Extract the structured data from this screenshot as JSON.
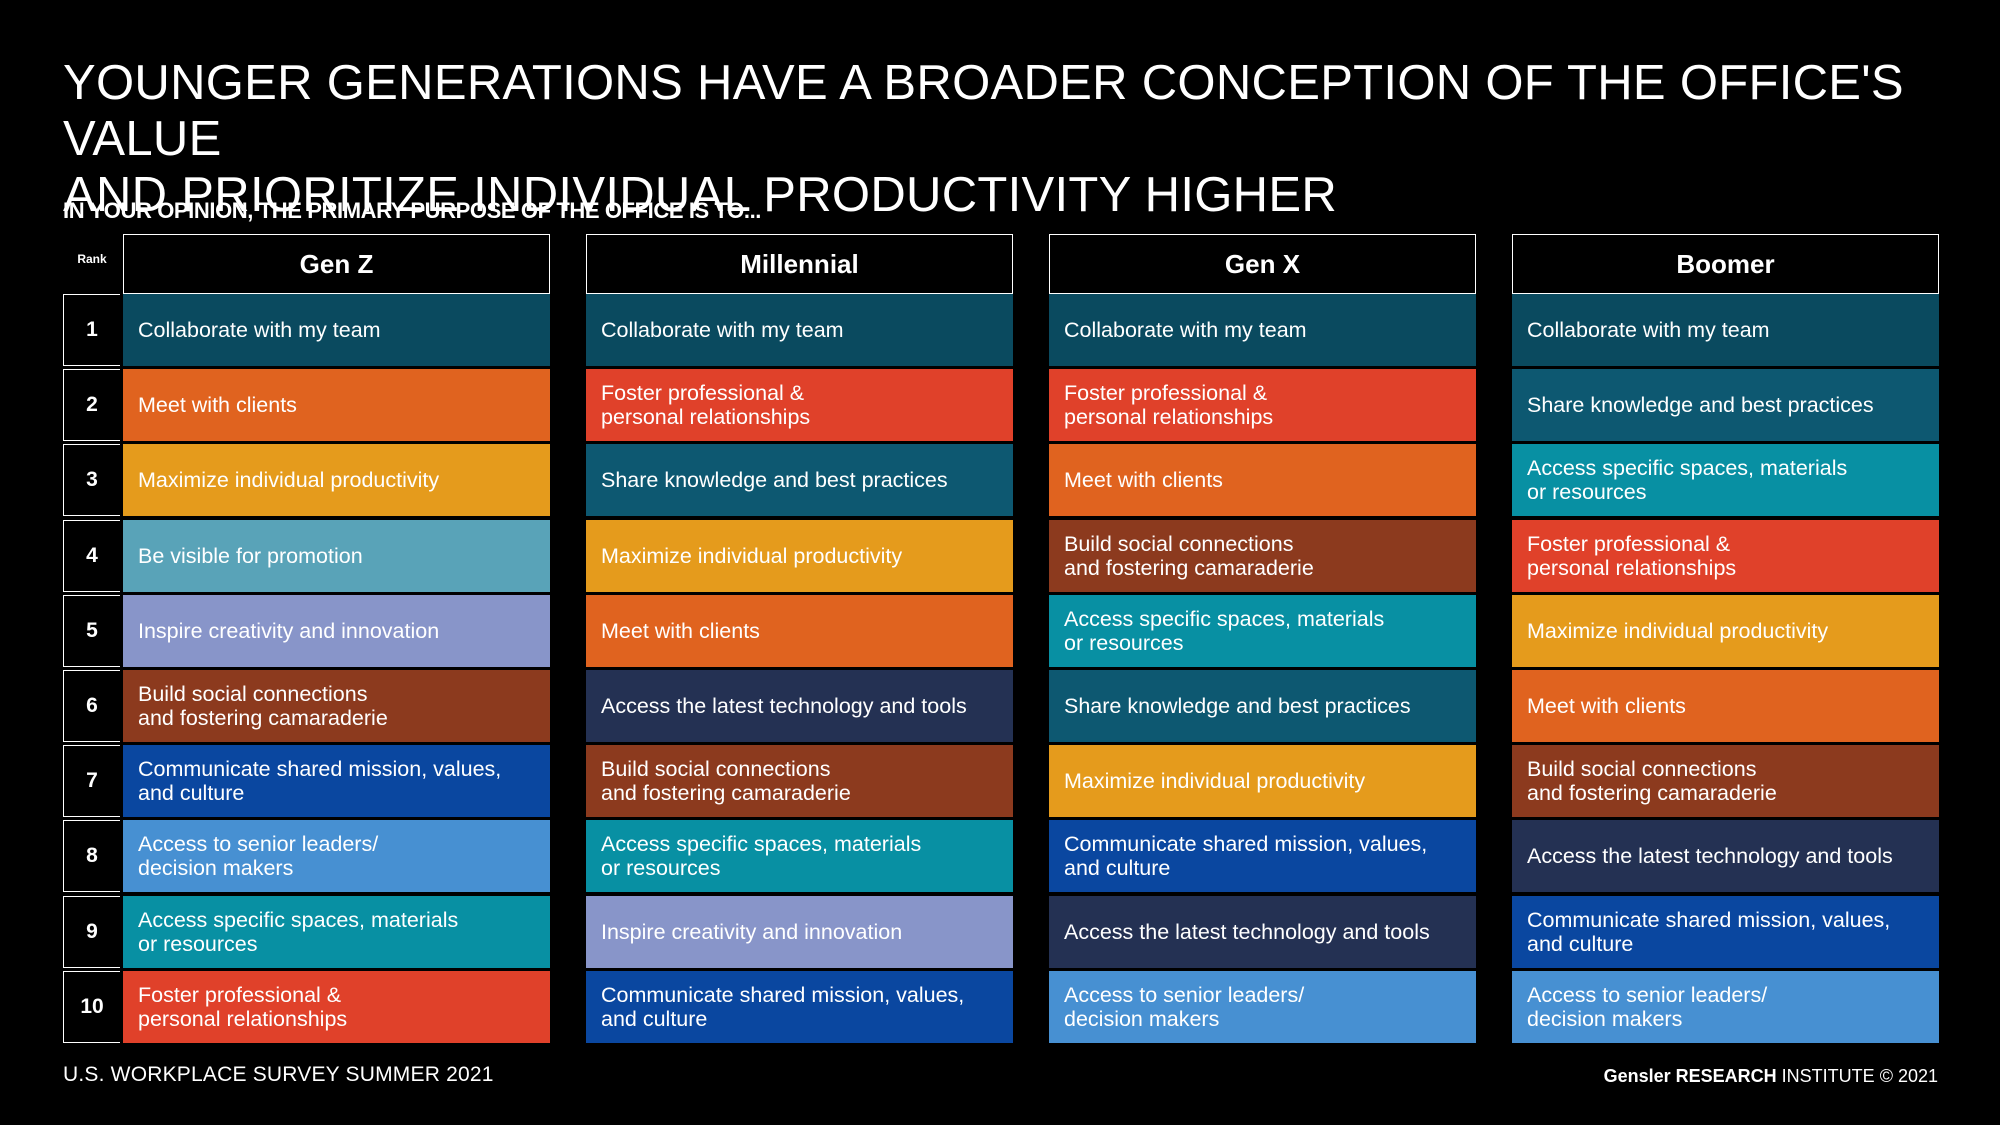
{
  "header": {
    "title": "YOUNGER GENERATIONS HAVE A BROADER CONCEPTION OF THE OFFICE'S VALUE\nAND PRIORITIZE INDIVIDUAL PRODUCTIVITY HIGHER",
    "question": "IN YOUR OPINION, THE PRIMARY PURPOSE OF THE OFFICE IS TO...",
    "rank_label": "Rank"
  },
  "footer": {
    "source": "U.S. WORKPLACE SURVEY SUMMER 2021",
    "brand": "Gensler",
    "research": "RESEARCH",
    "institute": "INSTITUTE",
    "copyright": "© 2021"
  },
  "category_colors": {
    "Collaborate with my team": "#0a4a5f",
    "Meet with clients": "#e0631f",
    "Maximize individual productivity": "#e59b1c",
    "Be visible for promotion": "#59a3b8",
    "Inspire creativity and innovation": "#8895c9",
    "Build social connections\nand fostering camaraderie": "#8c3a1e",
    "Communicate shared mission, values,\nand culture": "#0a47a0",
    "Access to senior leaders/\ndecision makers": "#4790d2",
    "Access specific spaces, materials\nor resources": "#0890a3",
    "Foster professional &\npersonal relationships": "#e0412a",
    "Share knowledge and best practices": "#0d5871",
    "Access the latest technology and tools": "#243153"
  },
  "chart_data": {
    "type": "table",
    "title": "YOUNGER GENERATIONS HAVE A BROADER CONCEPTION OF THE OFFICE'S VALUE AND PRIORITIZE INDIVIDUAL PRODUCTIVITY HIGHER",
    "subtitle": "IN YOUR OPINION, THE PRIMARY PURPOSE OF THE OFFICE IS TO...",
    "ranks": [
      "1",
      "2",
      "3",
      "4",
      "5",
      "6",
      "7",
      "8",
      "9",
      "10"
    ],
    "columns": [
      {
        "name": "Gen Z",
        "items": [
          "Collaborate with my team",
          "Meet with clients",
          "Maximize individual productivity",
          "Be visible for promotion",
          "Inspire creativity and innovation",
          "Build social connections\nand fostering camaraderie",
          "Communicate shared mission, values,\nand culture",
          "Access to senior leaders/\ndecision makers",
          "Access specific spaces, materials\nor resources",
          "Foster professional &\npersonal relationships"
        ]
      },
      {
        "name": "Millennial",
        "items": [
          "Collaborate with my team",
          "Foster professional &\npersonal relationships",
          "Share knowledge and best practices",
          "Maximize individual productivity",
          "Meet with clients",
          "Access the latest technology and tools",
          "Build social connections\nand fostering camaraderie",
          "Access specific spaces, materials\nor resources",
          "Inspire creativity and innovation",
          "Communicate shared mission, values,\nand culture"
        ]
      },
      {
        "name": "Gen X",
        "items": [
          "Collaborate with my team",
          "Foster professional &\npersonal relationships",
          "Meet with clients",
          "Build social connections\nand fostering camaraderie",
          "Access specific spaces, materials\nor resources",
          "Share knowledge and best practices",
          "Maximize individual productivity",
          "Communicate shared mission, values,\nand culture",
          "Access the latest technology and tools",
          "Access to senior leaders/\ndecision makers"
        ]
      },
      {
        "name": "Boomer",
        "items": [
          "Collaborate with my team",
          "Share knowledge and best practices",
          "Access specific spaces, materials\nor resources",
          "Foster professional &\npersonal relationships",
          "Maximize individual productivity",
          "Meet with clients",
          "Build social connections\nand fostering camaraderie",
          "Access the latest technology and tools",
          "Communicate shared mission, values,\nand culture",
          "Access to senior leaders/\ndecision makers"
        ]
      }
    ]
  }
}
